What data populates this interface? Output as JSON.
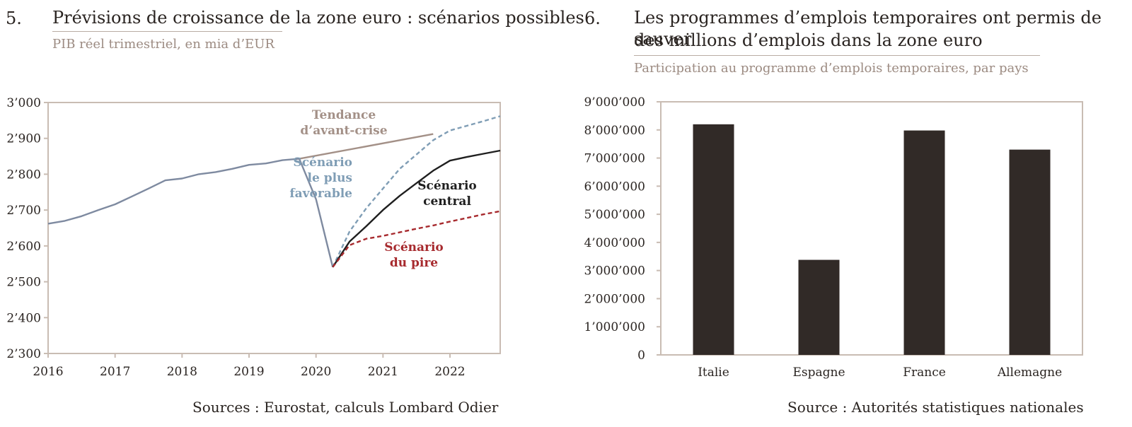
{
  "chart5": {
    "number": "5.",
    "title": "Prévisions de croissance de la zone euro : scénarios possibles",
    "subtitle": "PIB réel trimestriel, en mia d’EUR",
    "source": "Sources : Eurostat, calculs Lombard Odier"
  },
  "chart6": {
    "number": "6.",
    "title_line1": "Les programmes d’emplois temporaires ont permis de sauver",
    "title_line2": "des millions d’emplois dans la zone euro",
    "subtitle": "Participation au programme d’emplois temporaires, par pays",
    "source": "Source : Autorités statistiques nationales"
  },
  "chart_data": [
    {
      "type": "line",
      "xlim": [
        2016,
        2022.75
      ],
      "ylim": [
        2300,
        3000
      ],
      "x_ticks": [
        2016,
        2017,
        2018,
        2019,
        2020,
        2021,
        2022
      ],
      "x_tick_labels": [
        "2016",
        "2017",
        "2018",
        "2019",
        "2020",
        "2021",
        "2022"
      ],
      "y_ticks": [
        2300,
        2400,
        2500,
        2600,
        2700,
        2800,
        2900,
        3000
      ],
      "y_tick_labels": [
        "2’300",
        "2’400",
        "2’500",
        "2’600",
        "2’700",
        "2’800",
        "2’900",
        "3’000"
      ],
      "grid": false,
      "annotations": [
        {
          "series": "pre_crisis",
          "lines": [
            "Tendance",
            "d’avant-crise"
          ],
          "color": "#a39087"
        },
        {
          "series": "best",
          "lines": [
            "Scénario",
            "le plus",
            "favorable"
          ],
          "color": "#7f9db5"
        },
        {
          "series": "central",
          "lines": [
            "Scénario",
            "central"
          ],
          "color": "#1f1f1f"
        },
        {
          "series": "worst",
          "lines": [
            "Scénario",
            "du pire"
          ],
          "color": "#a72a2e"
        }
      ],
      "series": [
        {
          "key": "historical",
          "color": "#7e8aa0",
          "style": "solid",
          "x": [
            2016,
            2016.25,
            2016.5,
            2016.75,
            2017,
            2017.25,
            2017.5,
            2017.75,
            2018,
            2018.25,
            2018.5,
            2018.75,
            2019,
            2019.25,
            2019.5,
            2019.75,
            2020,
            2020.25
          ],
          "y": [
            2662,
            2670,
            2683,
            2700,
            2716,
            2738,
            2760,
            2783,
            2788,
            2800,
            2806,
            2815,
            2826,
            2830,
            2839,
            2843,
            2730,
            2541
          ]
        },
        {
          "key": "pre_crisis",
          "color": "#a39087",
          "style": "solid",
          "x": [
            2019.75,
            2021.75
          ],
          "y": [
            2843,
            2912
          ]
        },
        {
          "key": "best",
          "color": "#7f9db5",
          "style": "dashed",
          "x": [
            2020.25,
            2020.5,
            2020.75,
            2021,
            2021.25,
            2021.5,
            2021.75,
            2022,
            2022.25,
            2022.5,
            2022.75
          ],
          "y": [
            2541,
            2640,
            2705,
            2760,
            2815,
            2855,
            2895,
            2922,
            2935,
            2948,
            2962
          ]
        },
        {
          "key": "central",
          "color": "#1f1f1f",
          "style": "solid",
          "x": [
            2020.25,
            2020.5,
            2020.75,
            2021,
            2021.25,
            2021.5,
            2021.75,
            2022,
            2022.25,
            2022.5,
            2022.75
          ],
          "y": [
            2541,
            2612,
            2655,
            2700,
            2740,
            2775,
            2810,
            2838,
            2848,
            2857,
            2866
          ]
        },
        {
          "key": "worst",
          "color": "#a72a2e",
          "style": "dashed",
          "x": [
            2020.25,
            2020.5,
            2020.75,
            2021,
            2021.25,
            2021.5,
            2021.75,
            2022,
            2022.25,
            2022.5,
            2022.75
          ],
          "y": [
            2541,
            2602,
            2620,
            2628,
            2638,
            2648,
            2657,
            2668,
            2678,
            2688,
            2697
          ]
        }
      ]
    },
    {
      "type": "bar",
      "categories": [
        "Italie",
        "Espagne",
        "France",
        "Allemagne"
      ],
      "values": [
        8200000,
        3380000,
        7980000,
        7300000
      ],
      "ylim": [
        0,
        9000000
      ],
      "y_ticks": [
        0,
        1000000,
        2000000,
        3000000,
        4000000,
        5000000,
        6000000,
        7000000,
        8000000,
        9000000
      ],
      "y_tick_labels": [
        "0",
        "1’000’000",
        "2’000’000",
        "3’000’000",
        "4’000’000",
        "5’000’000",
        "6’000’000",
        "7’000’000",
        "8’000’000",
        "9’000’000"
      ],
      "bar_color": "#312a27",
      "grid": false
    }
  ]
}
